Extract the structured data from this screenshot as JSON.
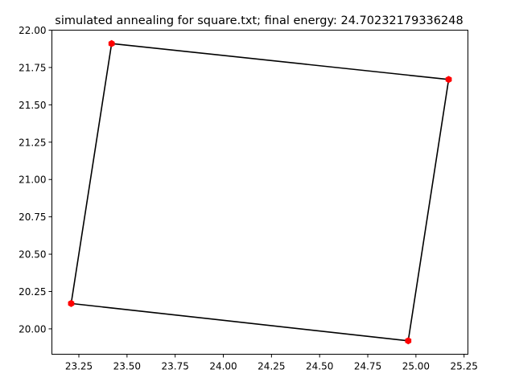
{
  "chart_data": {
    "type": "line",
    "title": "simulated annealing for square.txt; final energy: 24.70232179336248",
    "xlabel": "",
    "ylabel": "",
    "xlim": [
      23.11,
      25.27
    ],
    "ylim": [
      19.83,
      22.0
    ],
    "x_ticks": [
      "23.25",
      "23.50",
      "23.75",
      "24.00",
      "24.25",
      "24.50",
      "24.75",
      "25.00",
      "25.25"
    ],
    "x_tick_values": [
      23.25,
      23.5,
      23.75,
      24.0,
      24.25,
      24.5,
      24.75,
      25.0,
      25.25
    ],
    "y_ticks": [
      "20.00",
      "20.25",
      "20.50",
      "20.75",
      "21.00",
      "21.25",
      "21.50",
      "21.75",
      "22.00"
    ],
    "y_tick_values": [
      20.0,
      20.25,
      20.5,
      20.75,
      21.0,
      21.25,
      21.5,
      21.75,
      22.0
    ],
    "grid": false,
    "series": [
      {
        "line_color": "#000000",
        "marker_color": "#ff0000",
        "marker": "hexagon",
        "closed": true,
        "x": [
          23.42,
          25.17,
          24.96,
          23.21
        ],
        "y": [
          21.91,
          21.67,
          19.92,
          20.17
        ]
      }
    ]
  }
}
